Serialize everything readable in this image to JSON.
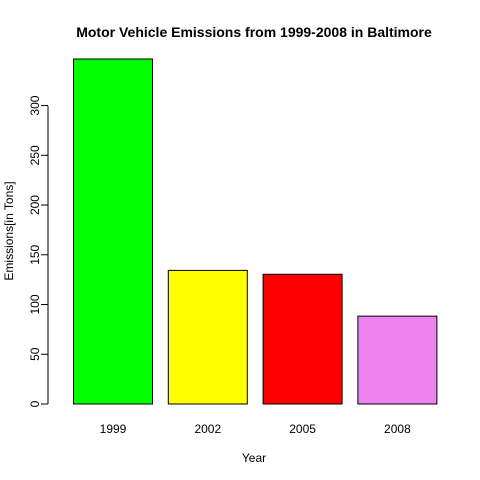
{
  "chart_data": {
    "type": "bar",
    "title": "Motor Vehicle  Emissions from 1999-2008 in Baltimore",
    "xlabel": "Year",
    "ylabel": "Emissions[in Tons]",
    "categories": [
      "1999",
      "2002",
      "2005",
      "2008"
    ],
    "values": [
      346.8,
      134.3,
      130.4,
      88.3
    ],
    "colors": [
      "#00ff00",
      "#ffff00",
      "#ff0000",
      "#ee82ee"
    ],
    "yticks": [
      "0",
      "50",
      "100",
      "150",
      "200",
      "250",
      "300"
    ],
    "ylim": [
      0,
      346.8
    ],
    "grid": false,
    "legend": "none"
  }
}
